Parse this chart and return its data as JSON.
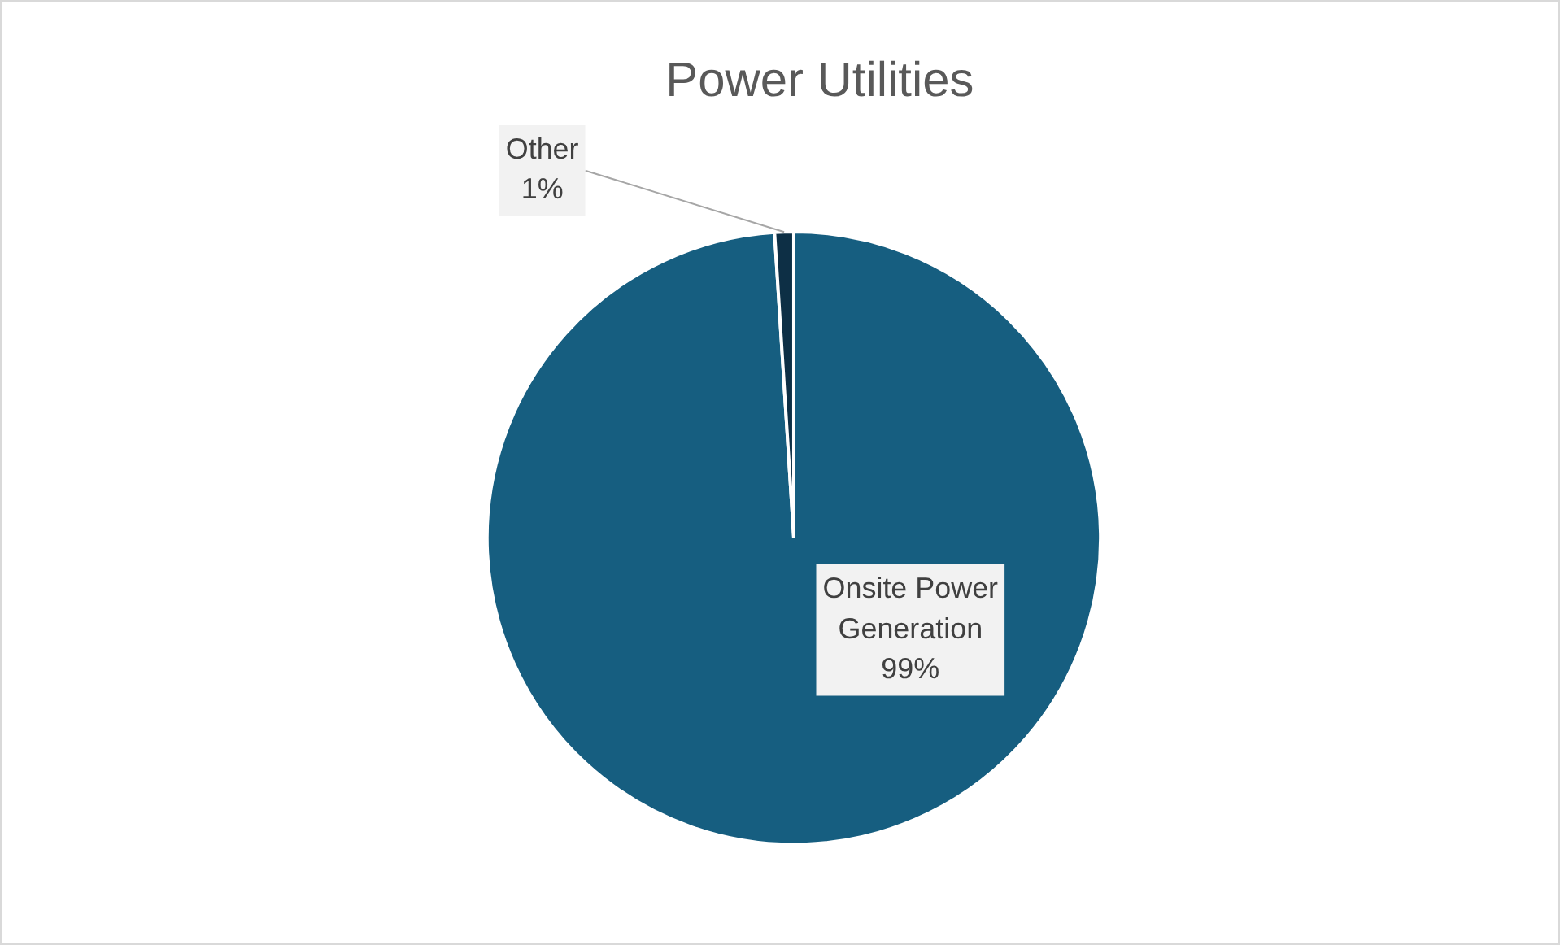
{
  "chart_data": {
    "type": "pie",
    "title": "Power Utilities",
    "categories": [
      "Onsite Power Generation",
      "Other"
    ],
    "values": [
      99,
      1
    ],
    "colors": [
      "#165e80",
      "#0d2f45"
    ],
    "value_labels": [
      "99%",
      "1%"
    ],
    "legend": false
  }
}
